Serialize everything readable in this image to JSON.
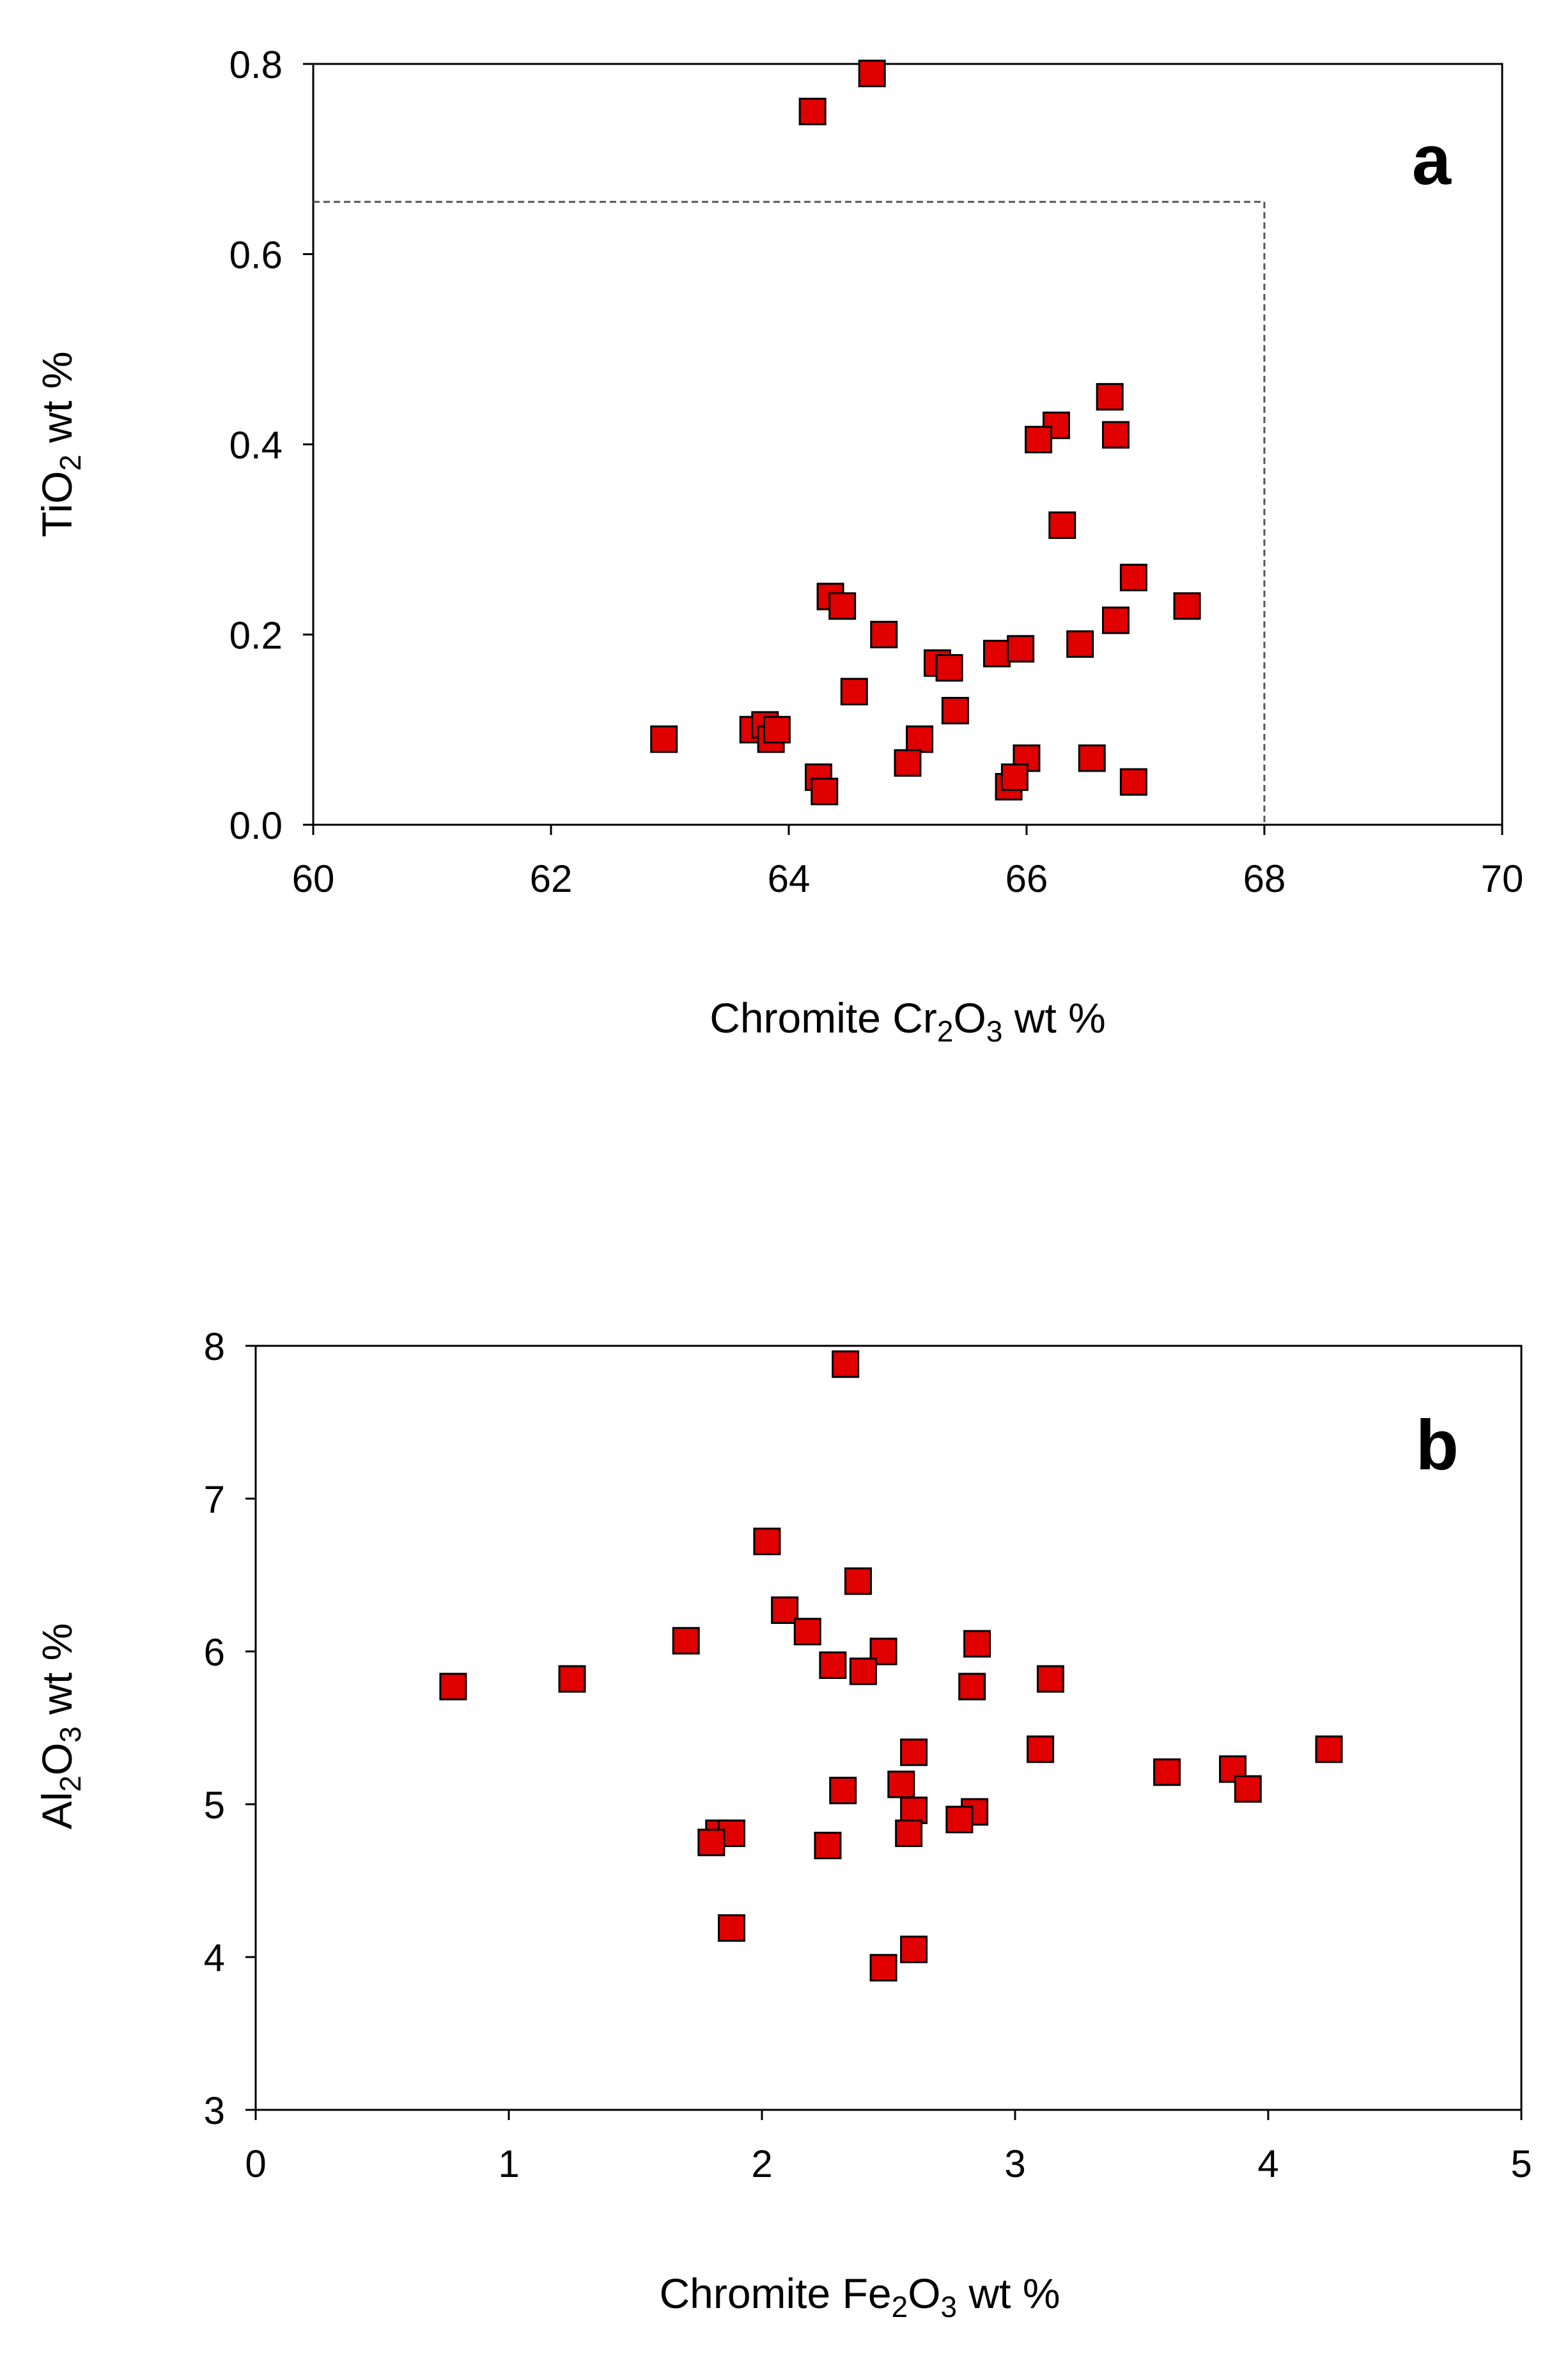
{
  "chart_data": [
    {
      "type": "scatter",
      "panel_label": "a",
      "xlabel": {
        "pre": "Chromite Cr",
        "sub1": "2",
        "mid": "O",
        "sub2": "3",
        "post": " wt %"
      },
      "ylabel": {
        "pre": "TiO",
        "sub1": "2",
        "post": " wt %"
      },
      "xlim": [
        60,
        70
      ],
      "ylim": [
        0,
        0.8
      ],
      "xticks": [
        "60",
        "62",
        "64",
        "66",
        "68",
        "70"
      ],
      "xtick_values": [
        60,
        62,
        64,
        66,
        68,
        70
      ],
      "yticks": [
        "0.0",
        "0.2",
        "0.4",
        "0.6",
        "0.8"
      ],
      "ytick_values": [
        0,
        0.2,
        0.4,
        0.6,
        0.8
      ],
      "grid": false,
      "marker": "square",
      "color": "#e00000",
      "threshold_box": {
        "x_max": 68,
        "y_max": 0.655
      },
      "points": [
        [
          64.2,
          0.75
        ],
        [
          64.7,
          0.79
        ],
        [
          66.7,
          0.45
        ],
        [
          66.25,
          0.42
        ],
        [
          66.1,
          0.405
        ],
        [
          66.75,
          0.41
        ],
        [
          66.3,
          0.315
        ],
        [
          66.9,
          0.26
        ],
        [
          67.35,
          0.23
        ],
        [
          66.75,
          0.215
        ],
        [
          64.35,
          0.24
        ],
        [
          64.45,
          0.23
        ],
        [
          64.8,
          0.2
        ],
        [
          65.25,
          0.17
        ],
        [
          65.35,
          0.165
        ],
        [
          65.75,
          0.18
        ],
        [
          65.95,
          0.185
        ],
        [
          66.45,
          0.19
        ],
        [
          64.55,
          0.14
        ],
        [
          65.4,
          0.12
        ],
        [
          62.95,
          0.09
        ],
        [
          63.7,
          0.1
        ],
        [
          63.8,
          0.105
        ],
        [
          63.85,
          0.09
        ],
        [
          63.9,
          0.1
        ],
        [
          65.1,
          0.09
        ],
        [
          65.0,
          0.065
        ],
        [
          66.0,
          0.07
        ],
        [
          66.55,
          0.07
        ],
        [
          64.25,
          0.05
        ],
        [
          64.3,
          0.035
        ],
        [
          65.85,
          0.04
        ],
        [
          65.9,
          0.05
        ],
        [
          66.9,
          0.045
        ]
      ]
    },
    {
      "type": "scatter",
      "panel_label": "b",
      "xlabel": {
        "pre": "Chromite Fe",
        "sub1": "2",
        "mid": "O",
        "sub2": "3",
        "post": " wt %"
      },
      "ylabel": {
        "pre": "Al",
        "sub1": "2",
        "mid": "O",
        "sub2": "3",
        "post": " wt %"
      },
      "xlim": [
        0,
        5
      ],
      "ylim": [
        3,
        8
      ],
      "xticks": [
        "0",
        "1",
        "2",
        "3",
        "4",
        "5"
      ],
      "xtick_values": [
        0,
        1,
        2,
        3,
        4,
        5
      ],
      "yticks": [
        "3",
        "4",
        "5",
        "6",
        "7",
        "8"
      ],
      "ytick_values": [
        3,
        4,
        5,
        6,
        7,
        8
      ],
      "grid": false,
      "marker": "square",
      "color": "#e00000",
      "points": [
        [
          2.33,
          7.88
        ],
        [
          2.02,
          6.72
        ],
        [
          2.38,
          6.46
        ],
        [
          2.09,
          6.27
        ],
        [
          2.18,
          6.13
        ],
        [
          1.7,
          6.07
        ],
        [
          2.85,
          6.05
        ],
        [
          2.48,
          6.0
        ],
        [
          2.28,
          5.91
        ],
        [
          2.4,
          5.87
        ],
        [
          3.14,
          5.82
        ],
        [
          1.25,
          5.82
        ],
        [
          0.78,
          5.77
        ],
        [
          2.83,
          5.77
        ],
        [
          3.1,
          5.36
        ],
        [
          4.24,
          5.36
        ],
        [
          2.6,
          5.34
        ],
        [
          3.6,
          5.21
        ],
        [
          3.86,
          5.23
        ],
        [
          2.55,
          5.13
        ],
        [
          3.92,
          5.1
        ],
        [
          2.32,
          5.09
        ],
        [
          2.6,
          4.96
        ],
        [
          2.84,
          4.95
        ],
        [
          2.78,
          4.9
        ],
        [
          1.83,
          4.81
        ],
        [
          1.88,
          4.81
        ],
        [
          2.58,
          4.81
        ],
        [
          1.8,
          4.75
        ],
        [
          2.26,
          4.73
        ],
        [
          1.88,
          4.19
        ],
        [
          2.6,
          4.05
        ],
        [
          2.48,
          3.93
        ]
      ]
    }
  ]
}
